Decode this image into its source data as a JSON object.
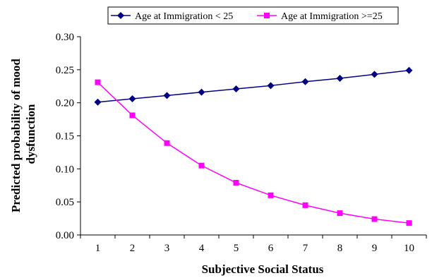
{
  "chart_data": {
    "type": "line",
    "x": [
      1,
      2,
      3,
      4,
      5,
      6,
      7,
      8,
      9,
      10
    ],
    "series": [
      {
        "name": "Age at Immigration < 25",
        "values": [
          0.201,
          0.206,
          0.211,
          0.216,
          0.221,
          0.226,
          0.232,
          0.237,
          0.243,
          0.249
        ],
        "color": "#000080",
        "marker": "diamond"
      },
      {
        "name": "Age at Immigration >=25",
        "values": [
          0.231,
          0.181,
          0.139,
          0.105,
          0.079,
          0.06,
          0.045,
          0.033,
          0.024,
          0.018
        ],
        "color": "#ff00ff",
        "marker": "square"
      }
    ],
    "xlabel": "Subjective Social Status",
    "ylabel_lines": [
      "Predicted probability of mood",
      "dysfunction"
    ],
    "xticks": [
      "1",
      "2",
      "3",
      "4",
      "5",
      "6",
      "7",
      "8",
      "9",
      "10"
    ],
    "yticks": [
      "0.00",
      "0.05",
      "0.10",
      "0.15",
      "0.20",
      "0.25",
      "0.30"
    ],
    "ytick_values": [
      0,
      0.05,
      0.1,
      0.15,
      0.2,
      0.25,
      0.3
    ],
    "ylim": [
      0,
      0.3
    ],
    "xlim": [
      0.5,
      10.5
    ],
    "grid": false,
    "legend_position": "top"
  }
}
